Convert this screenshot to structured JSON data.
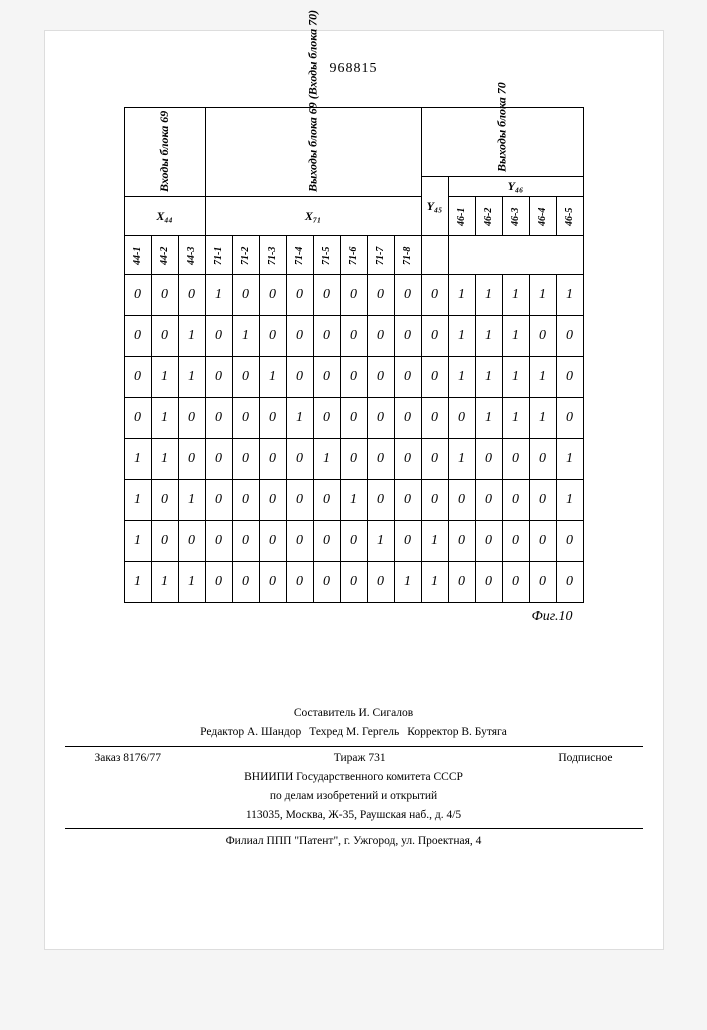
{
  "docnum": "968815",
  "figure_label": "Фиг.10",
  "table": {
    "groups": [
      {
        "title": "Входы блока 69",
        "sub": "X₄₄",
        "cols": [
          "44-1",
          "44-2",
          "44-3"
        ]
      },
      {
        "title": "Выходы блока 69 (Входы блока 70)",
        "sub": "X₇₁",
        "cols": [
          "71-1",
          "71-2",
          "71-3",
          "71-4",
          "71-5",
          "71-6",
          "71-7",
          "71-8"
        ]
      },
      {
        "title": "Выходы блока 70",
        "subs": [
          {
            "label": "Y₄₅",
            "cols": [
              "—"
            ]
          },
          {
            "label": "Y₄₆",
            "cols": [
              "46-1",
              "46-2",
              "46-3",
              "46-4",
              "46-5"
            ]
          }
        ]
      }
    ],
    "rows": [
      [
        "0",
        "0",
        "0",
        "1",
        "0",
        "0",
        "0",
        "0",
        "0",
        "0",
        "0",
        "0",
        "1",
        "1",
        "1",
        "1",
        "1"
      ],
      [
        "0",
        "0",
        "1",
        "0",
        "1",
        "0",
        "0",
        "0",
        "0",
        "0",
        "0",
        "0",
        "1",
        "1",
        "1",
        "0",
        "0"
      ],
      [
        "0",
        "1",
        "1",
        "0",
        "0",
        "1",
        "0",
        "0",
        "0",
        "0",
        "0",
        "0",
        "1",
        "1",
        "1",
        "1",
        "0"
      ],
      [
        "0",
        "1",
        "0",
        "0",
        "0",
        "0",
        "1",
        "0",
        "0",
        "0",
        "0",
        "0",
        "0",
        "1",
        "1",
        "1",
        "0"
      ],
      [
        "1",
        "1",
        "0",
        "0",
        "0",
        "0",
        "0",
        "1",
        "0",
        "0",
        "0",
        "0",
        "1",
        "0",
        "0",
        "0",
        "1"
      ],
      [
        "1",
        "0",
        "1",
        "0",
        "0",
        "0",
        "0",
        "0",
        "1",
        "0",
        "0",
        "0",
        "0",
        "0",
        "0",
        "0",
        "1"
      ],
      [
        "1",
        "0",
        "0",
        "0",
        "0",
        "0",
        "0",
        "0",
        "0",
        "1",
        "0",
        "1",
        "0",
        "0",
        "0",
        "0",
        "0"
      ],
      [
        "1",
        "1",
        "1",
        "0",
        "0",
        "0",
        "0",
        "0",
        "0",
        "0",
        "1",
        "1",
        "0",
        "0",
        "0",
        "0",
        "0"
      ]
    ],
    "border_color": "#000000",
    "cell_fontsize": 14,
    "header_fontsize": 12
  },
  "footer": {
    "compiler": "Составитель И. Сигалов",
    "editor": "Редактор А. Шандор",
    "tech": "Техред М. Гергель",
    "corrector": "Корректор В. Бутяга",
    "order": "Заказ 8176/77",
    "tirage": "Тираж 731",
    "subscr": "Подписное",
    "org1": "ВНИИПИ Государственного комитета СССР",
    "org2": "по делам изобретений и открытий",
    "addr": "113035, Москва, Ж-35, Раушская наб., д. 4/5",
    "branch": "Филиал ППП \"Патент\", г. Ужгород, ул. Проектная, 4"
  }
}
